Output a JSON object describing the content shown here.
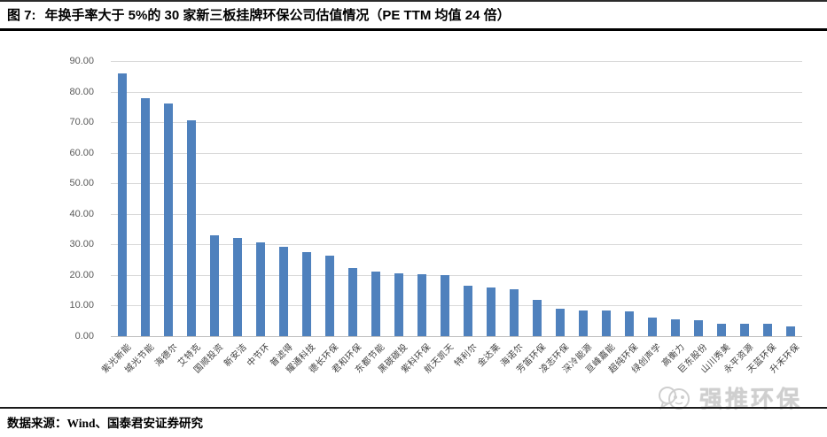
{
  "header": {
    "figure_label": "图 7:",
    "title_text": "年换手率大于 5%的 30 家新三板挂牌环保公司估值情况（PE TTM 均值 24 倍）"
  },
  "chart_data": {
    "type": "bar",
    "title": "年换手率大于 5%的 30 家新三板挂牌环保公司估值情况（PE TTM 均值 24 倍）",
    "xlabel": "",
    "ylabel": "",
    "ylim": [
      0,
      90
    ],
    "ytick_step": 10,
    "ytick_labels": [
      "0.00",
      "10.00",
      "20.00",
      "30.00",
      "40.00",
      "50.00",
      "60.00",
      "70.00",
      "80.00",
      "90.00"
    ],
    "grid": true,
    "legend": "none",
    "bar_color": "#4F81BD",
    "categories": [
      "紫光新能",
      "城光节能",
      "海德尔",
      "艾特克",
      "国顺投资",
      "新安洁",
      "中节环",
      "普滤得",
      "耀通科技",
      "德长环保",
      "君和环保",
      "东都节能",
      "黑碳碳投",
      "紫科环保",
      "航天凯天",
      "特利尔",
      "金达莱",
      "海诺尔",
      "芳笛环保",
      "凌志环保",
      "深冷能源",
      "亘峰嘉能",
      "超纯环保",
      "绿创声学",
      "高衡力",
      "巨东股份",
      "山川秀美",
      "永平资源",
      "天蓝环保",
      "升禾环保"
    ],
    "values": [
      86.0,
      77.9,
      76.0,
      70.6,
      33.0,
      32.0,
      30.8,
      29.2,
      27.6,
      26.4,
      22.2,
      21.1,
      20.6,
      20.2,
      19.9,
      16.4,
      16.0,
      15.2,
      11.9,
      9.0,
      8.5,
      8.3,
      8.0,
      6.0,
      5.5,
      5.3,
      4.2,
      4.0,
      4.1,
      3.2
    ],
    "mean_note": "PE TTM 均值 24 倍"
  },
  "watermark": {
    "text": "强推环保",
    "icon": "panda-chat-logo",
    "color": "#cfcfcf"
  },
  "footer": {
    "source": "数据来源：Wind、国泰君安证券研究"
  }
}
